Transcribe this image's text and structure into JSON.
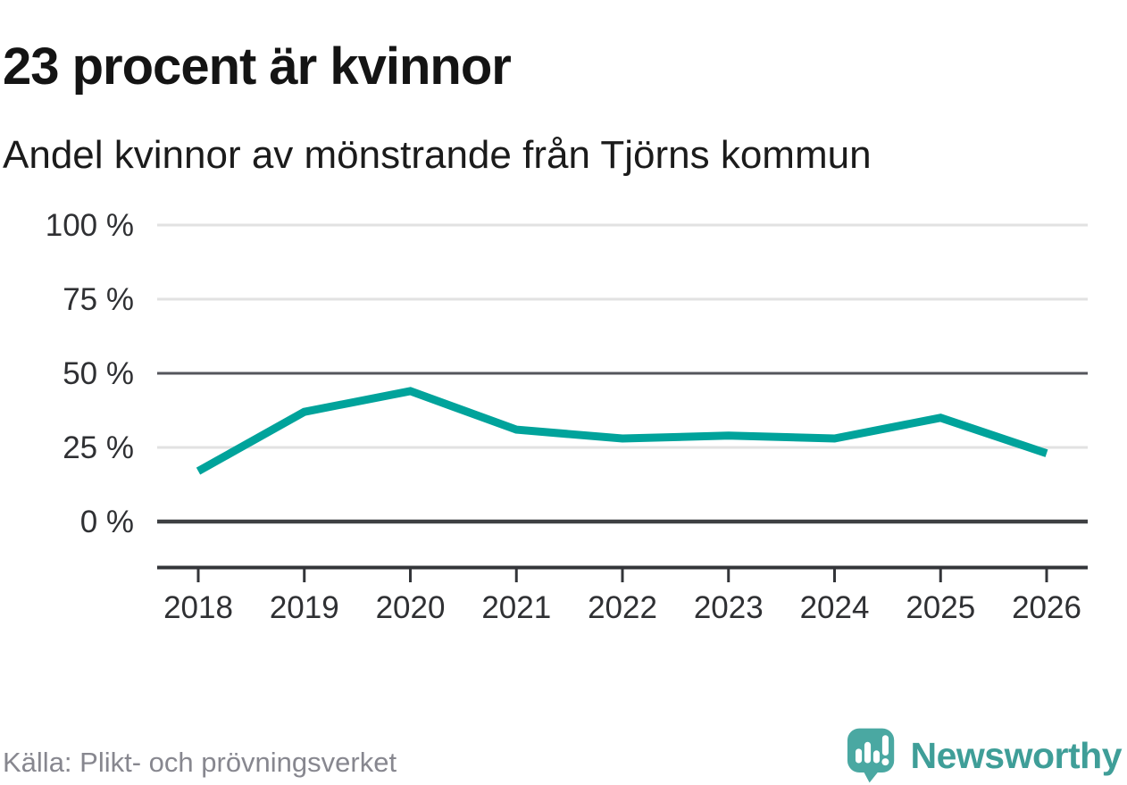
{
  "header": {
    "title": "23 procent är kvinnor",
    "subtitle": "Andel kvinnor av mönstrande från Tjörns kommun"
  },
  "footer": {
    "source": "Källa: Plikt- och prövningsverket",
    "brand": "Newsworthy"
  },
  "colors": {
    "line": "#00a39b",
    "grid_light": "#e2e2e2",
    "grid_mid": "#54565c",
    "grid_zero": "#3e4043",
    "axis": "#333539",
    "tick_text": "#2f3033",
    "brand_teal": "#3f9e98",
    "logo_bubble": "#4aa8a2"
  },
  "chart_data": {
    "type": "line",
    "categories": [
      "2018",
      "2019",
      "2020",
      "2021",
      "2022",
      "2023",
      "2024",
      "2025",
      "2026"
    ],
    "values": [
      17,
      37,
      44,
      31,
      28,
      29,
      28,
      35,
      23
    ],
    "series_name": "Andel kvinnor av mönstrande",
    "title": "23 procent är kvinnor",
    "subtitle": "Andel kvinnor av mönstrande från Tjörns kommun",
    "source": "Källa: Plikt- och prövningsverket",
    "unit": "%",
    "ylim": [
      0,
      100
    ],
    "yticks": [
      0,
      25,
      50,
      75,
      100
    ],
    "ytick_suffix": " %",
    "grid": "horizontal",
    "emphasized_gridlines": [
      50,
      0
    ],
    "legend": "none",
    "xlabel": "",
    "ylabel": ""
  }
}
